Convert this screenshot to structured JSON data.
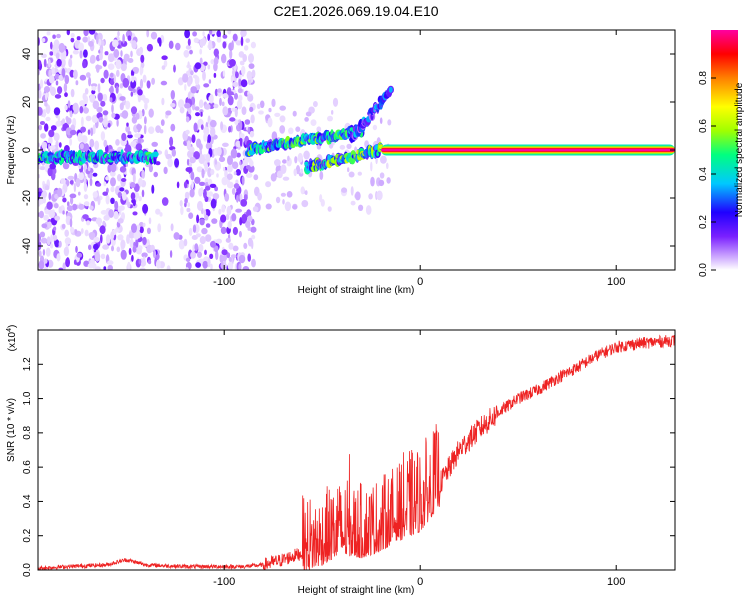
{
  "title": "C2E1.2026.069.19.04.E10",
  "chart_data": [
    {
      "type": "heatmap",
      "title": "C2E1.2026.069.19.04.E10",
      "xlabel": "Height of straight line (km)",
      "ylabel": "Frequency (Hz)",
      "xlim": [
        -195,
        130
      ],
      "ylim": [
        -50,
        50
      ],
      "x_ticks": [
        -100,
        0,
        100
      ],
      "x_tick_labels": [
        "-100",
        "0",
        "100"
      ],
      "y_ticks": [
        -40,
        -20,
        0,
        20,
        40
      ],
      "y_tick_labels": [
        "-40",
        "-20",
        "0",
        "20",
        "40"
      ],
      "colorbar": {
        "label": "Normalized spectral amplitude",
        "range": [
          0,
          1
        ],
        "ticks": [
          0,
          0.2,
          0.4,
          0.6,
          0.8
        ],
        "tick_labels": [
          "0.0",
          "0.2",
          "0.4",
          "0.6",
          "0.8"
        ],
        "colors": [
          "#ffffff",
          "#c8a0ff",
          "#7a20ff",
          "#2000ff",
          "#00c8ff",
          "#00ff80",
          "#a0ff00",
          "#ffff00",
          "#ff8000",
          "#ff0000",
          "#ff00a0"
        ]
      },
      "tracks": [
        {
          "name": "left-signal",
          "x_start": -195,
          "x_end": -135,
          "frequency": -3,
          "amplitude": 0.45
        },
        {
          "name": "upper-branch",
          "x_start": -88,
          "x_end": -30,
          "frequency_start": 0,
          "frequency_end": 8,
          "amplitude": 0.5
        },
        {
          "name": "lower-branch",
          "x_start": -58,
          "x_end": -20,
          "frequency_start": -7,
          "frequency_end": 0,
          "amplitude": 0.55
        },
        {
          "name": "rising-branch",
          "x_start": -35,
          "x_end": -15,
          "frequency_start": 5,
          "frequency_end": 25,
          "amplitude": 0.35
        },
        {
          "name": "carrier",
          "x_start": -20,
          "x_end": 130,
          "frequency": 0,
          "amplitude": 1.0
        }
      ]
    },
    {
      "type": "line",
      "xlabel": "Height of straight line (km)",
      "ylabel": "SNR (10 * v/v)",
      "y_scale_label": "(x10",
      "y_scale_exponent": "4",
      "xlim": [
        -195,
        130
      ],
      "ylim": [
        0,
        1.4
      ],
      "x_ticks": [
        -100,
        0,
        100
      ],
      "x_tick_labels": [
        "-100",
        "0",
        "100"
      ],
      "y_ticks": [
        0,
        0.2,
        0.4,
        0.6,
        0.8,
        1.0,
        1.2
      ],
      "y_tick_labels": [
        "0.0",
        "0.2",
        "0.4",
        "0.6",
        "0.8",
        "1.0",
        "1.2"
      ],
      "line_color": "#ee2222",
      "series": [
        {
          "name": "SNR",
          "x": [
            -195,
            -180,
            -160,
            -150,
            -140,
            -120,
            -100,
            -90,
            -80,
            -70,
            -60,
            -50,
            -40,
            -30,
            -20,
            -10,
            0,
            10,
            20,
            30,
            40,
            50,
            60,
            70,
            80,
            90,
            100,
            110,
            120,
            130
          ],
          "y": [
            0.01,
            0.02,
            0.03,
            0.06,
            0.03,
            0.02,
            0.02,
            0.02,
            0.03,
            0.06,
            0.1,
            0.14,
            0.2,
            0.18,
            0.22,
            0.3,
            0.35,
            0.5,
            0.7,
            0.82,
            0.92,
            1.0,
            1.05,
            1.12,
            1.18,
            1.25,
            1.3,
            1.32,
            1.33,
            1.34
          ]
        }
      ]
    }
  ]
}
